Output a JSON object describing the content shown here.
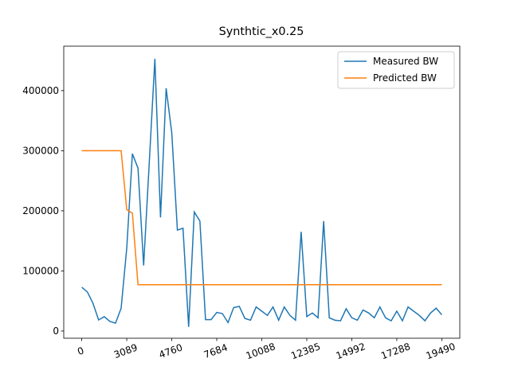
{
  "chart_data": {
    "type": "line",
    "title": "Synthtic_x0.25",
    "x": [
      0,
      1,
      2,
      3,
      4,
      5,
      6,
      7,
      8,
      9,
      10,
      11,
      12,
      13,
      14,
      15,
      16,
      17,
      18,
      19,
      20,
      21,
      22,
      23,
      24,
      25,
      26,
      27,
      28,
      29,
      30,
      31,
      32,
      33,
      34,
      35,
      36,
      37,
      38,
      39,
      40,
      41,
      42,
      43,
      44,
      45,
      46,
      47,
      48,
      49,
      50,
      51,
      52,
      53,
      54,
      55,
      56,
      57,
      58,
      59,
      60,
      61,
      62,
      63,
      64
    ],
    "series": [
      {
        "name": "Measured BW",
        "color": "#1f77b4",
        "values": [
          72800,
          65000,
          46000,
          18500,
          23800,
          16000,
          13000,
          38000,
          138000,
          295000,
          271000,
          109000,
          280000,
          453000,
          189000,
          404000,
          330000,
          168000,
          171000,
          7000,
          198000,
          183000,
          19000,
          19000,
          31000,
          29000,
          14000,
          39000,
          41000,
          21000,
          18000,
          40000,
          33000,
          26000,
          40000,
          18000,
          40000,
          26000,
          18000,
          165000,
          24000,
          30000,
          22000,
          183000,
          22000,
          18000,
          17000,
          37000,
          22000,
          18000,
          35000,
          30000,
          22000,
          40000,
          22000,
          17000,
          33000,
          17000,
          40000,
          33000,
          26000,
          17000,
          30000,
          38000,
          27000
        ]
      },
      {
        "name": "Predicted BW",
        "color": "#ff7f0e",
        "values": [
          300000,
          300000,
          300000,
          300000,
          300000,
          300000,
          300000,
          300000,
          202000,
          196000,
          77000,
          77000,
          77000,
          77000,
          77000,
          77000,
          77000,
          77000,
          77000,
          77000,
          77000,
          77000,
          77000,
          77000,
          77000,
          77000,
          77000,
          77000,
          77000,
          77000,
          77000,
          77000,
          77000,
          77000,
          77000,
          77000,
          77000,
          77000,
          77000,
          77000,
          77000,
          77000,
          77000,
          77000,
          77000,
          77000,
          77000,
          77000,
          77000,
          77000,
          77000,
          77000,
          77000,
          77000,
          77000,
          77000,
          77000,
          77000,
          77000,
          77000,
          77000,
          77000,
          77000,
          77000,
          77000
        ]
      }
    ],
    "xlim": [
      -3.2,
      67.2
    ],
    "ylim": [
      -12000,
      474000
    ],
    "xticks": [
      0,
      {
        "value": 8,
        "label": "3089"
      },
      {
        "value": 16,
        "label": "4760"
      },
      {
        "value": 24,
        "label": "7684"
      },
      {
        "value": 32,
        "label": "10088"
      },
      {
        "value": 40,
        "label": "12385"
      },
      {
        "value": 48,
        "label": "14992"
      },
      {
        "value": 56,
        "label": "17288"
      },
      {
        "value": 64,
        "label": "19490"
      }
    ],
    "yticks": [
      0,
      100000,
      200000,
      300000,
      400000
    ],
    "legend": "upper right"
  }
}
